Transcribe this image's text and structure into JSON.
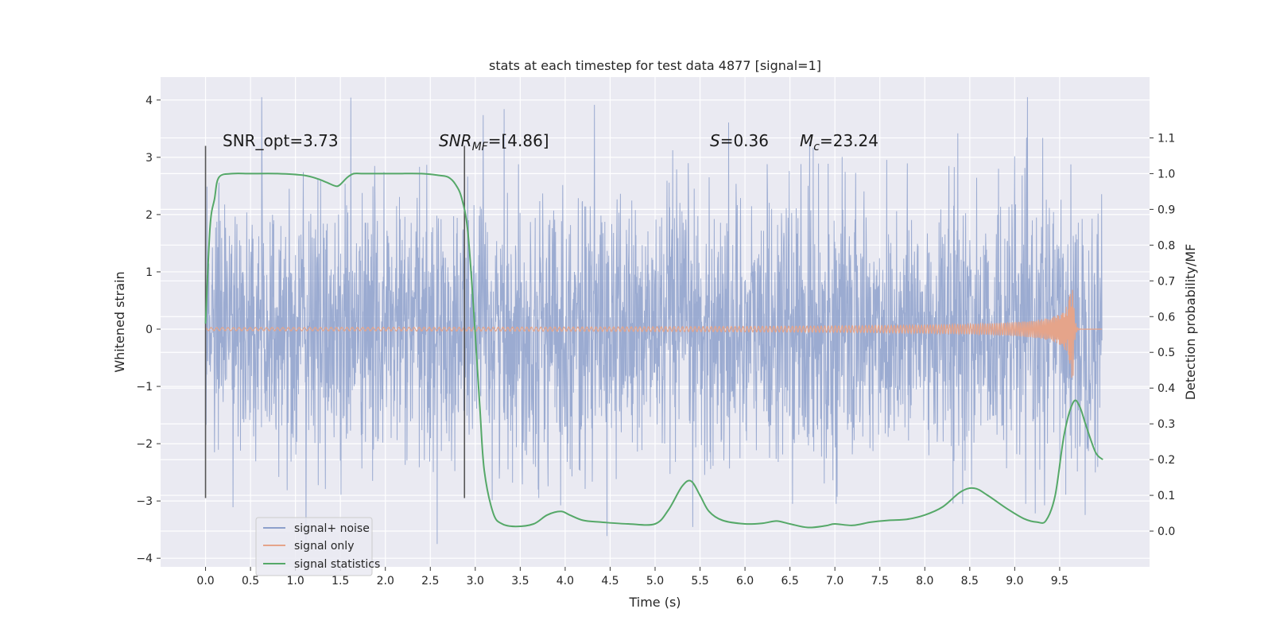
{
  "chart_data": {
    "type": "line",
    "title": "stats at each timestep for test data 4877 [signal=1]",
    "xlabel": "Time (s)",
    "ylabel": "Whitened strain",
    "ylabel_right": "Detection probability/MF",
    "xlim": [
      -0.5,
      10.5
    ],
    "ylim": [
      -4.15,
      4.4
    ],
    "ylim_right": [
      -0.1,
      1.27
    ],
    "grid": true,
    "legend_position": "lower-left",
    "x_ticks": [
      "0.0",
      "0.5",
      "1.0",
      "1.5",
      "2.0",
      "2.5",
      "3.0",
      "3.5",
      "4.0",
      "4.5",
      "5.0",
      "5.5",
      "6.0",
      "6.5",
      "7.0",
      "7.5",
      "8.0",
      "8.5",
      "9.0",
      "9.5"
    ],
    "y_ticks": [
      "−4",
      "−3",
      "−2",
      "−1",
      "0",
      "1",
      "2",
      "3",
      "4"
    ],
    "y_ticks_right": [
      "0.0",
      "0.1",
      "0.2",
      "0.3",
      "0.4",
      "0.5",
      "0.6",
      "0.7",
      "0.8",
      "0.9",
      "1.0",
      "1.1"
    ],
    "annotations": {
      "snr_opt": "SNR_opt=3.73",
      "snr_mf_italic": "SNR",
      "snr_mf_sub": "MF",
      "snr_mf_value": "=[4.86]",
      "s_italic": "S",
      "s_value": "=0.36",
      "mc_italic": "M",
      "mc_sub": "c",
      "mc_value": "=23.24"
    },
    "vlines": [
      0.0,
      2.88
    ],
    "colors": {
      "noise": "#8da0cb",
      "signal": "#e5a48a",
      "stat": "#55a868",
      "background": "#eaeaf2",
      "grid": "#ffffff"
    },
    "series": [
      {
        "name": "signal+ noise",
        "style": "dense whitened noise, approx. range -3.6 to 4.1"
      },
      {
        "name": "signal only",
        "x_merger": 9.65,
        "peak_amplitude": 0.85,
        "min_amplitude": -0.72
      },
      {
        "name": "signal statistics",
        "axis": "right",
        "x": [
          0.0,
          0.05,
          0.1,
          0.15,
          0.3,
          0.5,
          0.8,
          1.1,
          1.25,
          1.35,
          1.45,
          1.5,
          1.58,
          1.65,
          1.75,
          1.9,
          2.1,
          2.4,
          2.6,
          2.7,
          2.78,
          2.85,
          2.92,
          3.0,
          3.05,
          3.1,
          3.2,
          3.3,
          3.45,
          3.65,
          3.8,
          3.95,
          4.05,
          4.2,
          4.4,
          4.7,
          5.0,
          5.15,
          5.3,
          5.4,
          5.5,
          5.6,
          5.75,
          6.0,
          6.2,
          6.35,
          6.5,
          6.7,
          6.9,
          7.0,
          7.2,
          7.4,
          7.6,
          7.8,
          8.0,
          8.2,
          8.4,
          8.55,
          8.7,
          8.9,
          9.1,
          9.25,
          9.35,
          9.45,
          9.55,
          9.65,
          9.72,
          9.8,
          9.9,
          9.98
        ],
        "y": [
          0.58,
          0.85,
          0.93,
          0.99,
          1.0,
          1.0,
          1.0,
          0.995,
          0.985,
          0.975,
          0.965,
          0.97,
          0.99,
          1.0,
          1.0,
          1.0,
          1.0,
          1.0,
          0.995,
          0.99,
          0.97,
          0.93,
          0.83,
          0.55,
          0.35,
          0.17,
          0.05,
          0.02,
          0.013,
          0.02,
          0.045,
          0.055,
          0.045,
          0.03,
          0.025,
          0.02,
          0.02,
          0.06,
          0.125,
          0.14,
          0.1,
          0.055,
          0.03,
          0.02,
          0.022,
          0.028,
          0.02,
          0.01,
          0.015,
          0.02,
          0.016,
          0.025,
          0.03,
          0.033,
          0.045,
          0.068,
          0.11,
          0.12,
          0.1,
          0.065,
          0.035,
          0.025,
          0.03,
          0.1,
          0.27,
          0.36,
          0.35,
          0.29,
          0.22,
          0.2
        ]
      }
    ]
  }
}
